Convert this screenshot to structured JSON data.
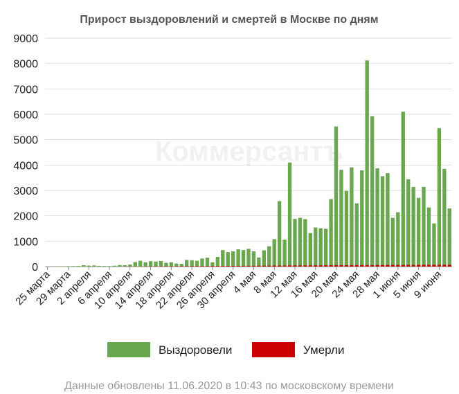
{
  "colors": {
    "recovered": "#6aa84f",
    "deaths": "#cc0000",
    "grid": "#dddddd",
    "axis": "#888888"
  },
  "watermark": "Коммерсантъ",
  "footer": "Данные обновлены 11.06.2020 в 10:43 по московскому времени",
  "chart_data": {
    "type": "bar",
    "stacked": true,
    "title": "Прирост выздоровлений и смертей в Москве по дням",
    "xlabel": "",
    "ylabel": "",
    "ylim": [
      0,
      9000
    ],
    "yticks": [
      0,
      1000,
      2000,
      3000,
      4000,
      5000,
      6000,
      7000,
      8000,
      9000
    ],
    "grid": "horizontal",
    "legend": "bottom",
    "categories": [
      "25.03",
      "26.03",
      "27.03",
      "28.03",
      "29.03",
      "30.03",
      "31.03",
      "01.04",
      "02.04",
      "03.04",
      "04.04",
      "05.04",
      "06.04",
      "07.04",
      "08.04",
      "09.04",
      "10.04",
      "11.04",
      "12.04",
      "13.04",
      "14.04",
      "15.04",
      "16.04",
      "17.04",
      "18.04",
      "19.04",
      "20.04",
      "21.04",
      "22.04",
      "23.04",
      "24.04",
      "25.04",
      "26.04",
      "27.04",
      "28.04",
      "29.04",
      "30.04",
      "01.05",
      "02.05",
      "03.05",
      "04.05",
      "05.05",
      "06.05",
      "07.05",
      "08.05",
      "09.05",
      "10.05",
      "11.05",
      "12.05",
      "13.05",
      "14.05",
      "15.05",
      "16.05",
      "17.05",
      "18.05",
      "19.05",
      "20.05",
      "21.05",
      "22.05",
      "23.05",
      "24.05",
      "25.05",
      "26.05",
      "27.05",
      "28.05",
      "29.05",
      "30.05",
      "31.05",
      "01.06",
      "02.06",
      "03.06",
      "04.06",
      "05.06",
      "06.06",
      "07.06",
      "08.06",
      "09.06",
      "10.06",
      "11.06"
    ],
    "xtick_labels": [
      {
        "index": 0,
        "label": "25 марта"
      },
      {
        "index": 4,
        "label": "29 марта"
      },
      {
        "index": 8,
        "label": "2 апреля"
      },
      {
        "index": 12,
        "label": "6 апреля"
      },
      {
        "index": 16,
        "label": "10 апреля"
      },
      {
        "index": 20,
        "label": "14 апреля"
      },
      {
        "index": 24,
        "label": "18 апреля"
      },
      {
        "index": 28,
        "label": "22 апреля"
      },
      {
        "index": 32,
        "label": "26 апреля"
      },
      {
        "index": 36,
        "label": "30 апреля"
      },
      {
        "index": 40,
        "label": "4 мая"
      },
      {
        "index": 44,
        "label": "8 мая"
      },
      {
        "index": 48,
        "label": "12 мая"
      },
      {
        "index": 52,
        "label": "16 мая"
      },
      {
        "index": 56,
        "label": "20 мая"
      },
      {
        "index": 60,
        "label": "24 мая"
      },
      {
        "index": 64,
        "label": "28 мая"
      },
      {
        "index": 68,
        "label": "1 июня"
      },
      {
        "index": 72,
        "label": "5 июня"
      },
      {
        "index": 76,
        "label": "9 июня"
      }
    ],
    "series": [
      {
        "name": "Выздоровели",
        "color": "#6aa84f",
        "values": [
          5,
          8,
          10,
          12,
          15,
          20,
          25,
          55,
          40,
          45,
          30,
          25,
          20,
          35,
          60,
          55,
          80,
          180,
          230,
          170,
          210,
          200,
          220,
          150,
          170,
          120,
          110,
          260,
          250,
          230,
          320,
          350,
          170,
          380,
          650,
          570,
          600,
          680,
          650,
          700,
          600,
          360,
          640,
          800,
          1080,
          2580,
          1060,
          4100,
          1880,
          1920,
          1870,
          1320,
          1540,
          1510,
          1490,
          2660,
          5520,
          3810,
          2980,
          3910,
          2490,
          3790,
          8120,
          5920,
          3870,
          3560,
          3680,
          1920,
          2140,
          6100,
          3440,
          3140,
          2710,
          3140,
          2330,
          1700,
          5450,
          3850,
          2290
        ]
      },
      {
        "name": "Умерли",
        "color": "#cc0000",
        "values": [
          0,
          0,
          0,
          0,
          0,
          0,
          0,
          0,
          0,
          0,
          0,
          0,
          0,
          0,
          2,
          3,
          4,
          5,
          6,
          7,
          9,
          10,
          11,
          12,
          13,
          15,
          16,
          17,
          18,
          19,
          20,
          21,
          22,
          24,
          25,
          27,
          28,
          30,
          31,
          33,
          34,
          36,
          37,
          38,
          40,
          41,
          42,
          44,
          45,
          46,
          47,
          48,
          49,
          50,
          51,
          52,
          53,
          54,
          55,
          56,
          57,
          58,
          59,
          60,
          61,
          62,
          63,
          64,
          64,
          65,
          65,
          66,
          66,
          67,
          67,
          68,
          68,
          69,
          69
        ]
      }
    ]
  }
}
